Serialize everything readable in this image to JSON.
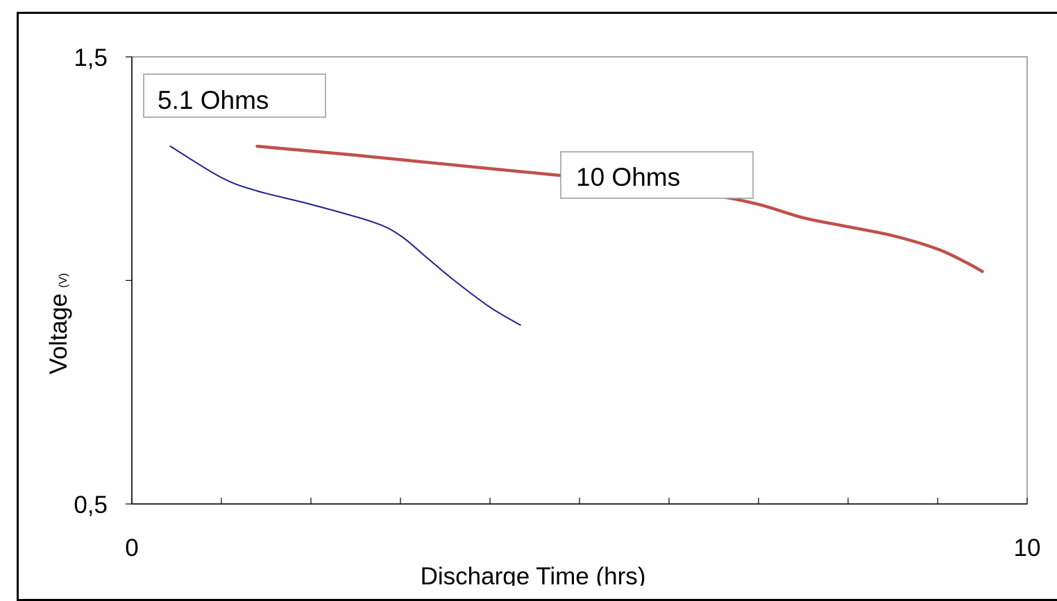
{
  "chart_data": {
    "type": "line",
    "title": "",
    "xlabel": "Discharge Time (hrs)",
    "ylabel": "Voltage",
    "ylabel_unit": "(V)",
    "xlim": [
      0,
      10
    ],
    "ylim": [
      0.5,
      1.5
    ],
    "x_tick_labels": [
      "0",
      "10"
    ],
    "y_tick_labels": [
      "1,5",
      "0,5"
    ],
    "x_minor_ticks": [
      1,
      2,
      3,
      4,
      5,
      6,
      7,
      8,
      9
    ],
    "y_minor_ticks": [
      1.0
    ],
    "grid": false,
    "series": [
      {
        "name": "5.1 Ohms",
        "color": "#1f1f8c",
        "points": [
          [
            0.43,
            1.3
          ],
          [
            1.0,
            1.23
          ],
          [
            1.4,
            1.2
          ],
          [
            2.0,
            1.17
          ],
          [
            2.7,
            1.13
          ],
          [
            3.0,
            1.1
          ],
          [
            3.3,
            1.05
          ],
          [
            3.6,
            1.0
          ],
          [
            4.0,
            0.94
          ],
          [
            4.34,
            0.9
          ]
        ]
      },
      {
        "name": "10 Ohms",
        "color": "#c0504d",
        "points": [
          [
            1.4,
            1.3
          ],
          [
            2.5,
            1.28
          ],
          [
            4.0,
            1.25
          ],
          [
            5.5,
            1.22
          ],
          [
            6.5,
            1.19
          ],
          [
            7.0,
            1.17
          ],
          [
            7.5,
            1.14
          ],
          [
            8.0,
            1.12
          ],
          [
            8.5,
            1.1
          ],
          [
            9.0,
            1.07
          ],
          [
            9.32,
            1.04
          ],
          [
            9.5,
            1.02
          ]
        ]
      }
    ]
  }
}
